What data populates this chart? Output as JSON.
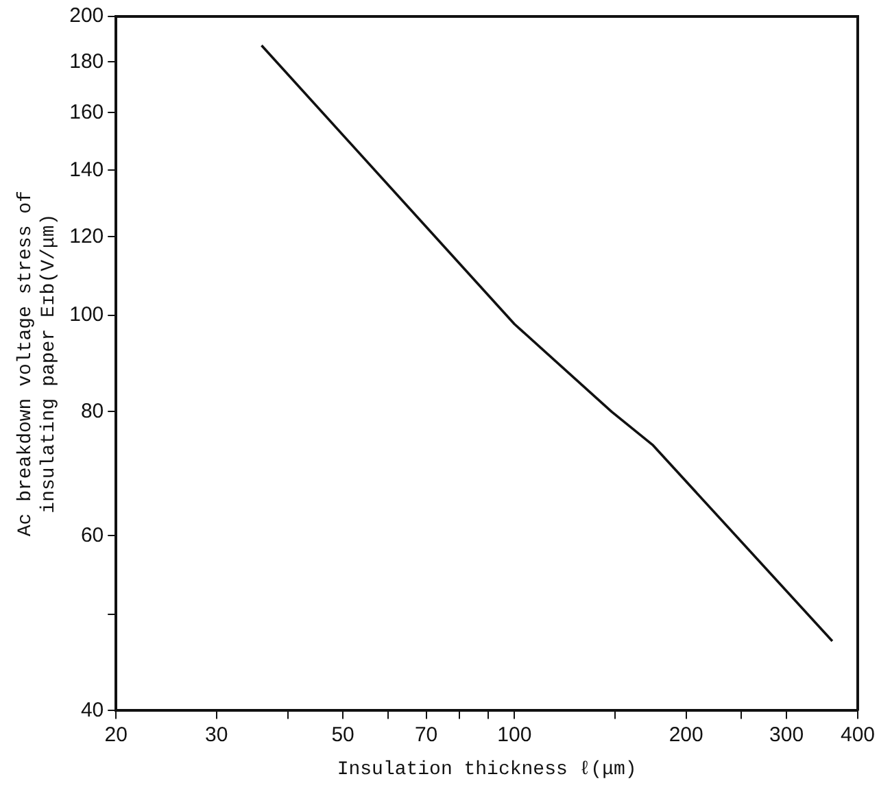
{
  "chart_data": {
    "type": "line",
    "xlabel": "Insulation thickness ℓ(μm)",
    "ylabel": "Ac breakdown voltage stress of\ninsulating paper Eɪb(V/μm)",
    "log": "xy",
    "grid": false,
    "legend": false,
    "marker": "none",
    "line_style": "solid",
    "x": [
      36,
      100,
      148,
      175,
      361
    ],
    "series": [
      {
        "color": "#111111",
        "values": [
          187,
          98,
          80,
          74,
          47
        ]
      }
    ],
    "xlim": [
      20,
      400
    ],
    "ylim": [
      40,
      200
    ],
    "xticks": [
      20,
      30,
      {
        "value": 40,
        "label": null
      },
      50,
      {
        "value": 60,
        "label": null
      },
      70,
      {
        "value": 80,
        "label": null
      },
      {
        "value": 90,
        "label": null
      },
      100,
      {
        "value": 150,
        "label": null
      },
      200,
      {
        "value": 250,
        "label": null
      },
      300,
      400
    ],
    "yticks": [
      40,
      {
        "value": 50,
        "label": null
      },
      60,
      80,
      100,
      120,
      140,
      160,
      180,
      200
    ]
  }
}
